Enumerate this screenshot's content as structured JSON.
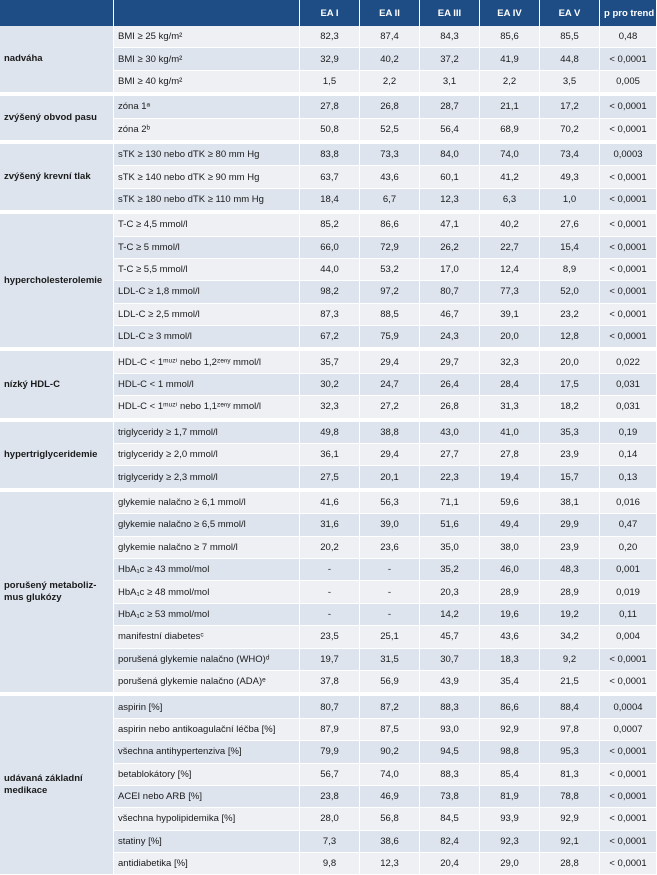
{
  "header": {
    "group": "",
    "criterion": "",
    "cols": [
      "EA I",
      "EA II",
      "EA III",
      "EA IV",
      "EA V",
      "p pro trend"
    ]
  },
  "groups": [
    {
      "label": "nadváha",
      "rows": [
        {
          "c": "BMI ≥ 25 kg/m²",
          "v": [
            "82,3",
            "87,4",
            "84,3",
            "85,6",
            "85,5",
            "0,48"
          ]
        },
        {
          "c": "BMI ≥ 30 kg/m²",
          "v": [
            "32,9",
            "40,2",
            "37,2",
            "41,9",
            "44,8",
            "< 0,0001"
          ]
        },
        {
          "c": "BMI ≥ 40 kg/m²",
          "v": [
            "1,5",
            "2,2",
            "3,1",
            "2,2",
            "3,5",
            "0,005"
          ]
        }
      ]
    },
    {
      "label": "zvýšený obvod pasu",
      "rows": [
        {
          "c": "zóna 1ᵃ",
          "v": [
            "27,8",
            "26,8",
            "28,7",
            "21,1",
            "17,2",
            "< 0,0001"
          ]
        },
        {
          "c": "zóna 2ᵇ",
          "v": [
            "50,8",
            "52,5",
            "56,4",
            "68,9",
            "70,2",
            "< 0,0001"
          ]
        }
      ]
    },
    {
      "label": "zvýšený krevní tlak",
      "rows": [
        {
          "c": "sTK ≥ 130 nebo dTK ≥ 80 mm Hg",
          "v": [
            "83,8",
            "73,3",
            "84,0",
            "74,0",
            "73,4",
            "0,0003"
          ]
        },
        {
          "c": "sTK ≥ 140 nebo dTK ≥ 90 mm Hg",
          "v": [
            "63,7",
            "43,6",
            "60,1",
            "41,2",
            "49,3",
            "< 0,0001"
          ]
        },
        {
          "c": "sTK ≥ 180 nebo dTK ≥ 110 mm Hg",
          "v": [
            "18,4",
            "6,7",
            "12,3",
            "6,3",
            "1,0",
            "< 0,0001"
          ]
        }
      ]
    },
    {
      "label": "hypercholesterolemie",
      "rows": [
        {
          "c": "T-C ≥ 4,5 mmol/l",
          "v": [
            "85,2",
            "86,6",
            "47,1",
            "40,2",
            "27,6",
            "< 0,0001"
          ]
        },
        {
          "c": "T-C ≥ 5 mmol/l",
          "v": [
            "66,0",
            "72,9",
            "26,2",
            "22,7",
            "15,4",
            "< 0,0001"
          ]
        },
        {
          "c": "T-C ≥ 5,5 mmol/l",
          "v": [
            "44,0",
            "53,2",
            "17,0",
            "12,4",
            "8,9",
            "< 0,0001"
          ]
        },
        {
          "c": "LDL-C ≥ 1,8 mmol/l",
          "v": [
            "98,2",
            "97,2",
            "80,7",
            "77,3",
            "52,0",
            "< 0,0001"
          ]
        },
        {
          "c": "LDL-C ≥ 2,5 mmol/l",
          "v": [
            "87,3",
            "88,5",
            "46,7",
            "39,1",
            "23,2",
            "< 0,0001"
          ]
        },
        {
          "c": "LDL-C ≥ 3 mmol/l",
          "v": [
            "67,2",
            "75,9",
            "24,3",
            "20,0",
            "12,8",
            "< 0,0001"
          ]
        }
      ]
    },
    {
      "label": "nízký HDL-C",
      "rows": [
        {
          "c": "HDL-C < 1ᵐᵘᶻⁱ nebo 1,2ᶻᵉⁿʸ mmol/l",
          "v": [
            "35,7",
            "29,4",
            "29,7",
            "32,3",
            "20,0",
            "0,022"
          ]
        },
        {
          "c": "HDL-C < 1 mmol/l",
          "v": [
            "30,2",
            "24,7",
            "26,4",
            "28,4",
            "17,5",
            "0,031"
          ]
        },
        {
          "c": "HDL-C < 1ᵐᵘᶻⁱ nebo 1,1ᶻᵉⁿʸ mmol/l",
          "v": [
            "32,3",
            "27,2",
            "26,8",
            "31,3",
            "18,2",
            "0,031"
          ]
        }
      ]
    },
    {
      "label": "hypertriglyceridemie",
      "rows": [
        {
          "c": "triglyceridy ≥ 1,7 mmol/l",
          "v": [
            "49,8",
            "38,8",
            "43,0",
            "41,0",
            "35,3",
            "0,19"
          ]
        },
        {
          "c": "triglyceridy ≥ 2,0 mmol/l",
          "v": [
            "36,1",
            "29,4",
            "27,7",
            "27,8",
            "23,9",
            "0,14"
          ]
        },
        {
          "c": "triglyceridy ≥ 2,3 mmol/l",
          "v": [
            "27,5",
            "20,1",
            "22,3",
            "19,4",
            "15,7",
            "0,13"
          ]
        }
      ]
    },
    {
      "label": "porušený metaboliz-mus glukózy",
      "rows": [
        {
          "c": "glykemie nalačno ≥ 6,1 mmol/l",
          "v": [
            "41,6",
            "56,3",
            "71,1",
            "59,6",
            "38,1",
            "0,016"
          ]
        },
        {
          "c": "glykemie nalačno ≥ 6,5 mmol/l",
          "v": [
            "31,6",
            "39,0",
            "51,6",
            "49,4",
            "29,9",
            "0,47"
          ]
        },
        {
          "c": "glykemie nalačno ≥ 7 mmol/l",
          "v": [
            "20,2",
            "23,6",
            "35,0",
            "38,0",
            "23,9",
            "0,20"
          ]
        },
        {
          "c": "HbA₁c ≥ 43 mmol/mol",
          "v": [
            "-",
            "-",
            "35,2",
            "46,0",
            "48,3",
            "0,001"
          ]
        },
        {
          "c": "HbA₁c ≥ 48 mmol/mol",
          "v": [
            "-",
            "-",
            "20,3",
            "28,9",
            "28,9",
            "0,019"
          ]
        },
        {
          "c": "HbA₁c ≥ 53 mmol/mol",
          "v": [
            "-",
            "-",
            "14,2",
            "19,6",
            "19,2",
            "0,11"
          ]
        },
        {
          "c": "manifestní diabetesᶜ",
          "v": [
            "23,5",
            "25,1",
            "45,7",
            "43,6",
            "34,2",
            "0,004"
          ]
        },
        {
          "c": "porušená glykemie nalačno (WHO)ᵈ",
          "v": [
            "19,7",
            "31,5",
            "30,7",
            "18,3",
            "9,2",
            "< 0,0001"
          ]
        },
        {
          "c": "porušená glykemie nalačno (ADA)ᵉ",
          "v": [
            "37,8",
            "56,9",
            "43,9",
            "35,4",
            "21,5",
            "< 0,0001"
          ]
        }
      ]
    },
    {
      "label": "udávaná základní medikace",
      "rows": [
        {
          "c": "aspirin [%]",
          "v": [
            "80,7",
            "87,2",
            "88,3",
            "86,6",
            "88,4",
            "0,0004"
          ]
        },
        {
          "c": "aspirin nebo antikoagulační léčba [%]",
          "v": [
            "87,9",
            "87,5",
            "93,0",
            "92,9",
            "97,8",
            "0,0007"
          ]
        },
        {
          "c": "všechna antihypertenziva [%]",
          "v": [
            "79,9",
            "90,2",
            "94,5",
            "98,8",
            "95,3",
            "< 0,0001"
          ]
        },
        {
          "c": "betablokátory [%]",
          "v": [
            "56,7",
            "74,0",
            "88,3",
            "85,4",
            "81,3",
            "< 0,0001"
          ]
        },
        {
          "c": "ACEI nebo ARB [%]",
          "v": [
            "23,8",
            "46,9",
            "73,8",
            "81,9",
            "78,8",
            "< 0,0001"
          ]
        },
        {
          "c": "všechna hypolipidemika [%]",
          "v": [
            "28,0",
            "56,8",
            "84,5",
            "93,9",
            "92,9",
            "< 0,0001"
          ]
        },
        {
          "c": "statiny [%]",
          "v": [
            "7,3",
            "38,6",
            "82,4",
            "92,3",
            "92,1",
            "< 0,0001"
          ]
        },
        {
          "c": "antidiabetika [%]",
          "v": [
            "9,8",
            "12,3",
            "20,4",
            "29,0",
            "28,8",
            "< 0,0001"
          ]
        }
      ]
    }
  ]
}
